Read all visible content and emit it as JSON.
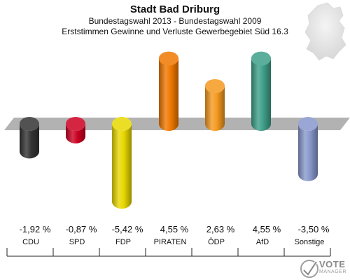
{
  "header": {
    "title": "Stadt Bad Driburg",
    "subtitle": "Bundestagswahl 2013 - Bundestagswahl 2009",
    "subtitle2": "Erststimmen Gewinne und Verluste Gewerbegebiet Süd 16.3"
  },
  "logo": {
    "text": "VOTE",
    "sub": "MANAGER"
  },
  "chart_data": {
    "type": "bar",
    "title": "Stadt Bad Driburg",
    "categories": [
      "CDU",
      "SPD",
      "FDP",
      "PIRATEN",
      "ÖDP",
      "AfD",
      "Sonstige"
    ],
    "values": [
      -1.92,
      -0.87,
      -5.42,
      4.55,
      2.63,
      4.55,
      -3.5
    ],
    "value_labels": [
      "-1,92 %",
      "-0,87 %",
      "-5,42 %",
      "4,55 %",
      "2,63 %",
      "4,55 %",
      "-3,50 %"
    ],
    "colors": [
      "#333333",
      "#cc0022",
      "#e8d800",
      "#f07800",
      "#f59a20",
      "#3fa08a",
      "#8898cc"
    ],
    "ylim": [
      -6,
      6
    ],
    "grid": false,
    "legend": "none"
  }
}
